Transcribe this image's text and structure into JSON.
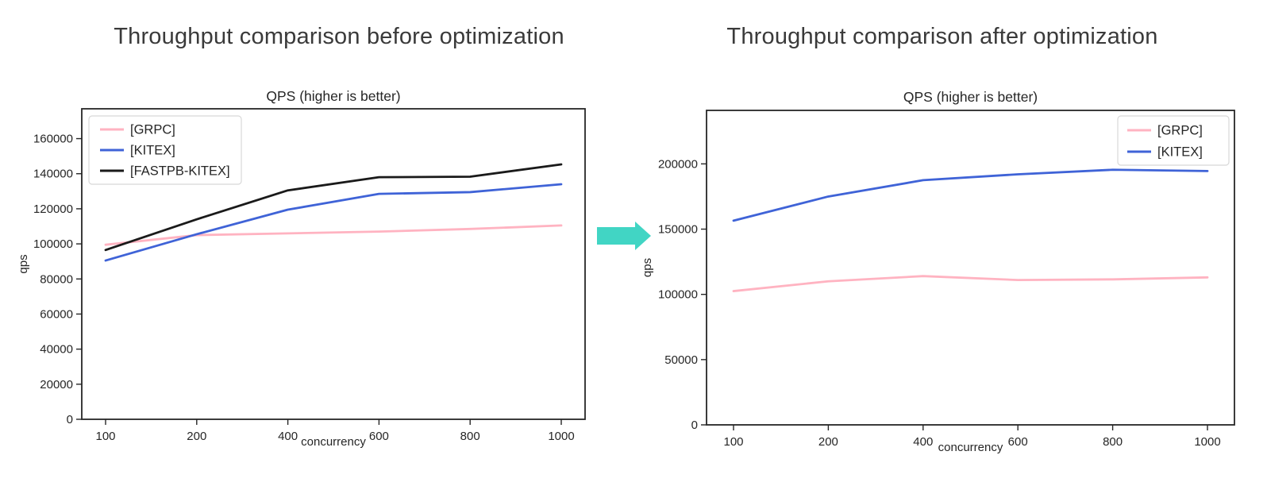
{
  "page": {
    "background": "#ffffff"
  },
  "sections": {
    "before": {
      "title": "Throughput comparison before optimization"
    },
    "after": {
      "title": "Throughput comparison after optimization"
    }
  },
  "arrow": {
    "icon": "arrow-right-icon",
    "color": "#41d5c4"
  },
  "text_color": "#262626",
  "frame_color": "#262626",
  "chart_data": [
    {
      "type": "line",
      "title": "QPS (higher is better)",
      "xlabel": "concurrency",
      "ylabel": "qps",
      "x": [
        100,
        200,
        400,
        600,
        800,
        1000
      ],
      "ylim": [
        0,
        177000
      ],
      "yticks": [
        0,
        20000,
        40000,
        60000,
        80000,
        100000,
        120000,
        140000,
        160000
      ],
      "grid": false,
      "legend_position": "upper-left",
      "series": [
        {
          "name": "[GRPC]",
          "color": "#ffb3c1",
          "values": [
            99500,
            105000,
            106000,
            107000,
            108500,
            110500
          ]
        },
        {
          "name": "[KITEX]",
          "color": "#3f63d7",
          "values": [
            90500,
            105500,
            119500,
            128500,
            129500,
            134000
          ]
        },
        {
          "name": "[FASTPB-KITEX]",
          "color": "#1a1a1a",
          "values": [
            96500,
            114000,
            130500,
            138000,
            138300,
            145300
          ]
        }
      ]
    },
    {
      "type": "line",
      "title": "QPS (higher is better)",
      "xlabel": "concurrency",
      "ylabel": "qps",
      "x": [
        100,
        200,
        400,
        600,
        800,
        1000
      ],
      "ylim": [
        0,
        241000
      ],
      "yticks": [
        0,
        50000,
        100000,
        150000,
        200000
      ],
      "grid": false,
      "legend_position": "upper-right",
      "series": [
        {
          "name": "[GRPC]",
          "color": "#ffb3c1",
          "values": [
            102500,
            110000,
            114000,
            111000,
            111500,
            113000
          ]
        },
        {
          "name": "[KITEX]",
          "color": "#3f63d7",
          "values": [
            156500,
            175000,
            187500,
            192000,
            195500,
            194500
          ]
        }
      ]
    }
  ]
}
